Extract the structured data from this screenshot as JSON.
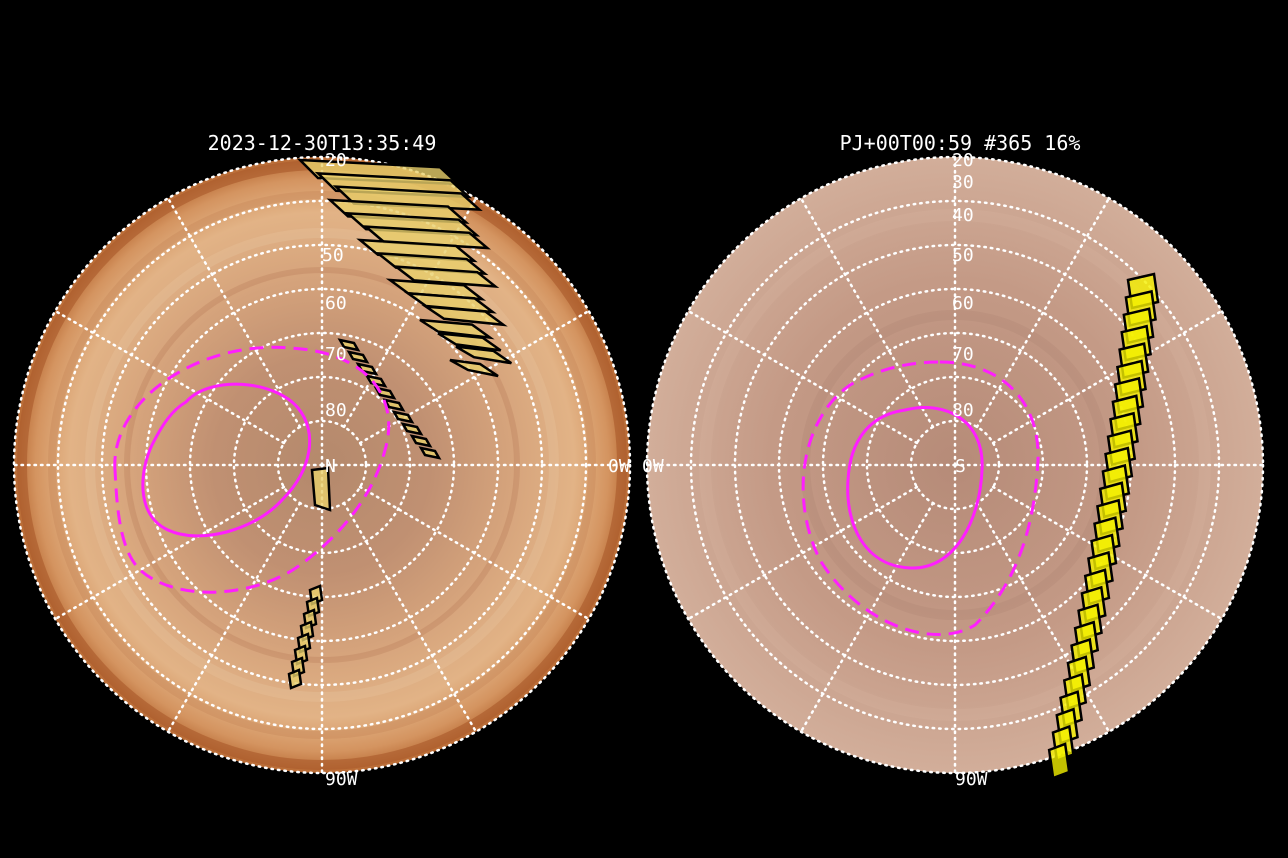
{
  "colors": {
    "background": "#000000",
    "oval_line": "#ff1eff",
    "grid": "#ffffff",
    "footprint_fill_north": "#e9cf6c",
    "footprint_fill_south": "#f4f000",
    "footprint_edge": "#000000"
  },
  "north_panel": {
    "title": "2023-12-30T13:35:49",
    "pole_label": "N",
    "lat_labels": [
      "20",
      "50",
      "60",
      "70",
      "80"
    ],
    "lon_label_right": "0W",
    "lon_label_bottom": "90W",
    "disk_texture": "jupiter-north-polar-cloud-bands"
  },
  "south_panel": {
    "title": "PJ+00T00:59 #365 16%",
    "pole_label": "S",
    "lat_labels": [
      "20",
      "30",
      "40",
      "50",
      "60",
      "70",
      "80"
    ],
    "lon_label_left": "0W",
    "lon_label_bottom": "90W",
    "disk_texture": "jupiter-south-polar-cloud-bands"
  }
}
